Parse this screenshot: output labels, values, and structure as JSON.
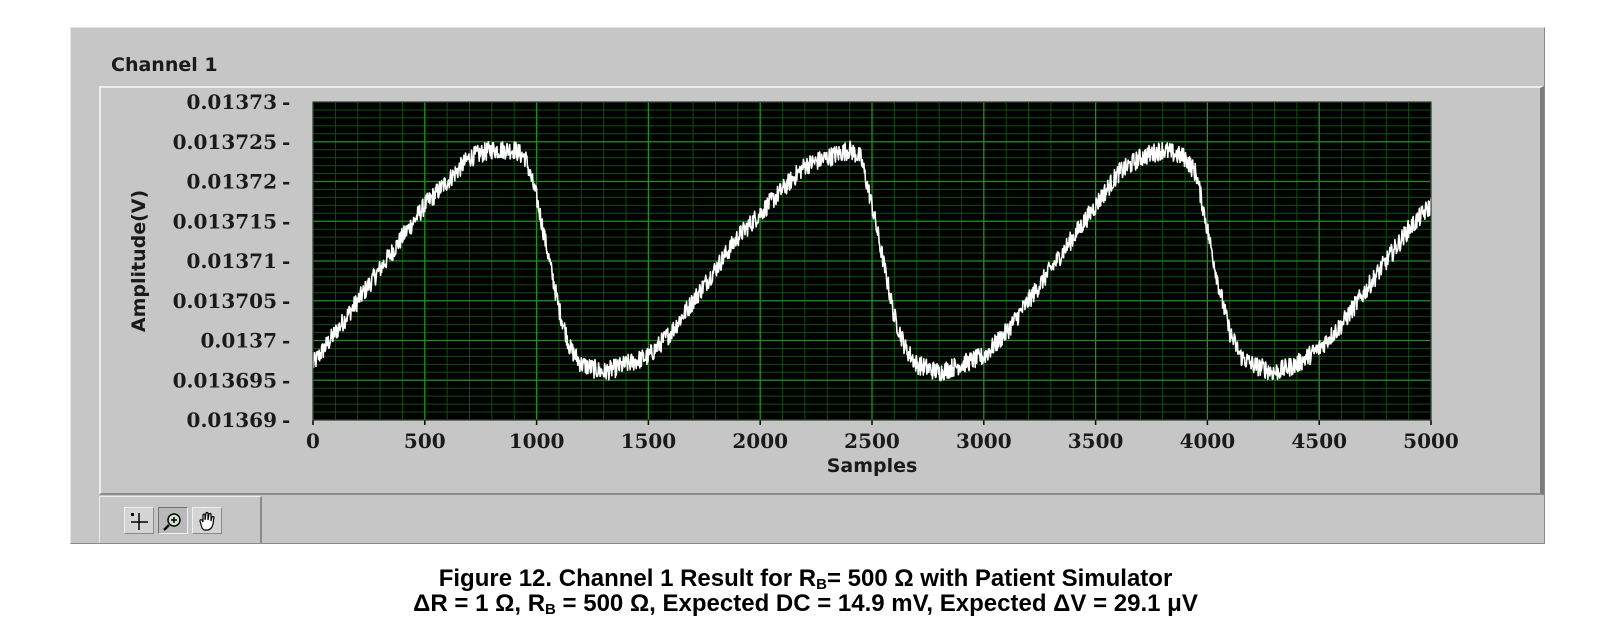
{
  "plot_label": "Channel 1",
  "caption": {
    "line1_prefix": "Figure 12. Channel 1 Result for R",
    "line1_sub": "B",
    "line1_suffix": "= 500 Ω with Patient Simulator",
    "line2_prefix": "ΔR = 1 Ω, R",
    "line2_sub": "B",
    "line2_suffix": " = 500 Ω, Expected DC = 14.9 mV, Expected ΔV = 29.1 μV"
  },
  "toolbar": {
    "tools": [
      "cursor-move-icon",
      "zoom-icon",
      "pan-hand-icon"
    ]
  },
  "colors": {
    "plot_bg": "#000000",
    "grid_major": "#1f8f1f",
    "grid_minor": "#0d4f0d",
    "trace": "#ffffff",
    "panel": "#c6c6c6"
  },
  "chart_data": {
    "type": "line",
    "xlabel": "Samples",
    "ylabel": "Amplitude(V)",
    "xlim": [
      0,
      5000
    ],
    "ylim": [
      0.01369,
      0.01373
    ],
    "xticks": [
      "0",
      "500",
      "1000",
      "1500",
      "2000",
      "2500",
      "3000",
      "3500",
      "4000",
      "4500",
      "5000"
    ],
    "yticks": [
      "0.01373",
      "0.013725",
      "0.01372",
      "0.013715",
      "0.01371",
      "0.013705",
      "0.0137",
      "0.013695",
      "0.01369"
    ],
    "grid": true,
    "series": [
      {
        "x": [
          0,
          100,
          200,
          300,
          400,
          500,
          600,
          700,
          800,
          900,
          950,
          1000,
          1050,
          1100,
          1150,
          1200,
          1300,
          1400,
          1500,
          1600,
          1700,
          1800,
          1900,
          2000,
          2100,
          2200,
          2300,
          2400,
          2450,
          2500,
          2550,
          2600,
          2650,
          2700,
          2800,
          2900,
          3000,
          3100,
          3200,
          3300,
          3400,
          3500,
          3600,
          3700,
          3800,
          3900,
          3950,
          4000,
          4050,
          4100,
          4150,
          4200,
          4300,
          4400,
          4500,
          4600,
          4700,
          4800,
          4900,
          5000
        ],
        "y": [
          0.013697,
          0.013701,
          0.013705,
          0.013709,
          0.013713,
          0.013717,
          0.01372,
          0.013723,
          0.013724,
          0.013724,
          0.013723,
          0.013718,
          0.013711,
          0.013704,
          0.013699,
          0.013697,
          0.013696,
          0.013697,
          0.013698,
          0.013701,
          0.013705,
          0.013709,
          0.013713,
          0.013716,
          0.013719,
          0.013722,
          0.013723,
          0.013724,
          0.013723,
          0.013717,
          0.01371,
          0.013703,
          0.013699,
          0.013697,
          0.013696,
          0.013697,
          0.013698,
          0.013701,
          0.013705,
          0.013709,
          0.013713,
          0.013717,
          0.013721,
          0.013723,
          0.013724,
          0.013723,
          0.013721,
          0.013714,
          0.013707,
          0.013701,
          0.013698,
          0.013697,
          0.013696,
          0.013697,
          0.013699,
          0.013702,
          0.013706,
          0.01371,
          0.013714,
          0.013717
        ]
      }
    ]
  }
}
